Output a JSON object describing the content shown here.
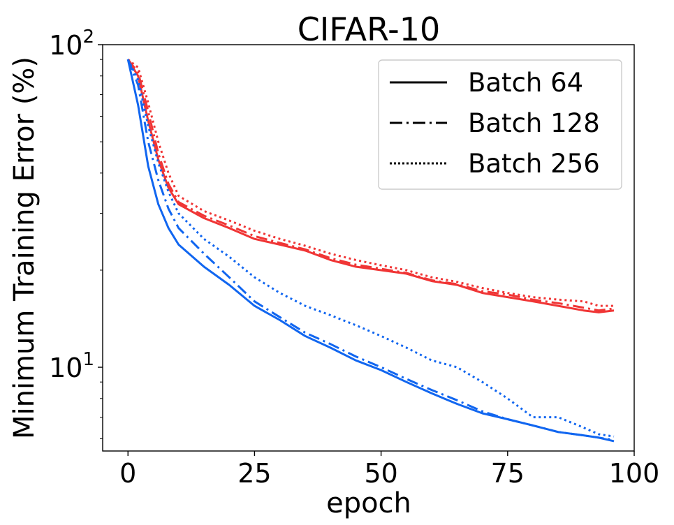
{
  "chart_data": {
    "type": "line",
    "title": "CIFAR-10",
    "xlabel": "epoch",
    "ylabel": "Minimum Training Error (%)",
    "xlim": [
      -5,
      100
    ],
    "ylim": [
      5.5,
      100
    ],
    "yscale": "log",
    "xticks": [
      0,
      25,
      50,
      75,
      100
    ],
    "xtick_labels": [
      "0",
      "25",
      "50",
      "75",
      "100"
    ],
    "yticks": [
      {
        "value": 10,
        "base": "10",
        "exp": "1"
      },
      {
        "value": 100,
        "base": "10",
        "exp": "2"
      }
    ],
    "grid": false,
    "legend_position": "top-right",
    "legend": [
      {
        "label": "Batch 64",
        "style": "solid"
      },
      {
        "label": "Batch 128",
        "style": "dashdot"
      },
      {
        "label": "Batch 256",
        "style": "dotted"
      }
    ],
    "colors": {
      "red": "#f03535",
      "blue": "#1166f0"
    },
    "series": [
      {
        "color": "red",
        "style": "solid",
        "x": [
          0,
          2,
          4,
          6,
          8,
          10,
          15,
          20,
          25,
          30,
          35,
          40,
          45,
          50,
          55,
          60,
          65,
          70,
          75,
          80,
          85,
          90,
          93,
          96
        ],
        "y": [
          90,
          80,
          58,
          44,
          36,
          32,
          29,
          27,
          25,
          24,
          23,
          21.5,
          20.5,
          20,
          19.5,
          18.5,
          18,
          17,
          16.5,
          16,
          15.5,
          15,
          14.8,
          15
        ]
      },
      {
        "color": "red",
        "style": "dashdot",
        "x": [
          0,
          2,
          4,
          6,
          8,
          10,
          15,
          20,
          25,
          30,
          35,
          40,
          45,
          50,
          55,
          60,
          65,
          70,
          75,
          80,
          85,
          90,
          93,
          96
        ],
        "y": [
          90,
          82,
          62,
          46,
          37,
          32.5,
          29.5,
          27.5,
          25.5,
          24.3,
          23.2,
          21.8,
          20.8,
          20.2,
          19.6,
          18.6,
          18.1,
          17.2,
          16.8,
          16.2,
          15.8,
          15.3,
          15.0,
          15.2
        ]
      },
      {
        "color": "red",
        "style": "dotted",
        "x": [
          0,
          2,
          4,
          6,
          8,
          10,
          15,
          20,
          25,
          30,
          35,
          40,
          45,
          50,
          55,
          60,
          65,
          70,
          75,
          80,
          85,
          90,
          93,
          96
        ],
        "y": [
          90,
          85,
          66,
          50,
          40,
          34,
          30.5,
          28.5,
          26.5,
          25,
          23.8,
          22.5,
          21.5,
          20.7,
          20,
          19,
          18.4,
          17.6,
          17,
          16.5,
          16.2,
          16,
          15.5,
          15.5
        ]
      },
      {
        "color": "blue",
        "style": "solid",
        "x": [
          0,
          2,
          4,
          6,
          8,
          10,
          15,
          20,
          25,
          30,
          35,
          40,
          45,
          50,
          55,
          60,
          65,
          70,
          75,
          80,
          85,
          90,
          93,
          96
        ],
        "y": [
          90,
          65,
          42,
          32,
          27,
          24,
          20.5,
          18,
          15.5,
          14,
          12.5,
          11.5,
          10.5,
          9.8,
          9,
          8.3,
          7.7,
          7.2,
          6.9,
          6.6,
          6.3,
          6.15,
          6.05,
          5.9
        ]
      },
      {
        "color": "blue",
        "style": "dashdot",
        "x": [
          0,
          2,
          4,
          6,
          8,
          10,
          15,
          20,
          25,
          30,
          35,
          40,
          45,
          50,
          55,
          60,
          65,
          70,
          75,
          80,
          85,
          90,
          93,
          96
        ],
        "y": [
          90,
          75,
          50,
          38,
          31,
          27,
          22.5,
          19,
          16,
          14.3,
          12.8,
          11.8,
          10.8,
          10,
          9.2,
          8.5,
          7.9,
          7.3,
          6.9,
          6.6,
          6.3,
          6.15,
          6.05,
          5.95
        ]
      },
      {
        "color": "blue",
        "style": "dotted",
        "x": [
          0,
          2,
          4,
          6,
          8,
          10,
          15,
          20,
          25,
          30,
          35,
          40,
          45,
          50,
          55,
          60,
          65,
          70,
          75,
          80,
          85,
          90,
          93,
          96
        ],
        "y": [
          90,
          78,
          56,
          43,
          35,
          30,
          25,
          22,
          19,
          17,
          15.5,
          14.5,
          13.5,
          12.5,
          11.5,
          10.5,
          10,
          9,
          8,
          7,
          7,
          6.5,
          6.2,
          6.1
        ]
      }
    ]
  }
}
